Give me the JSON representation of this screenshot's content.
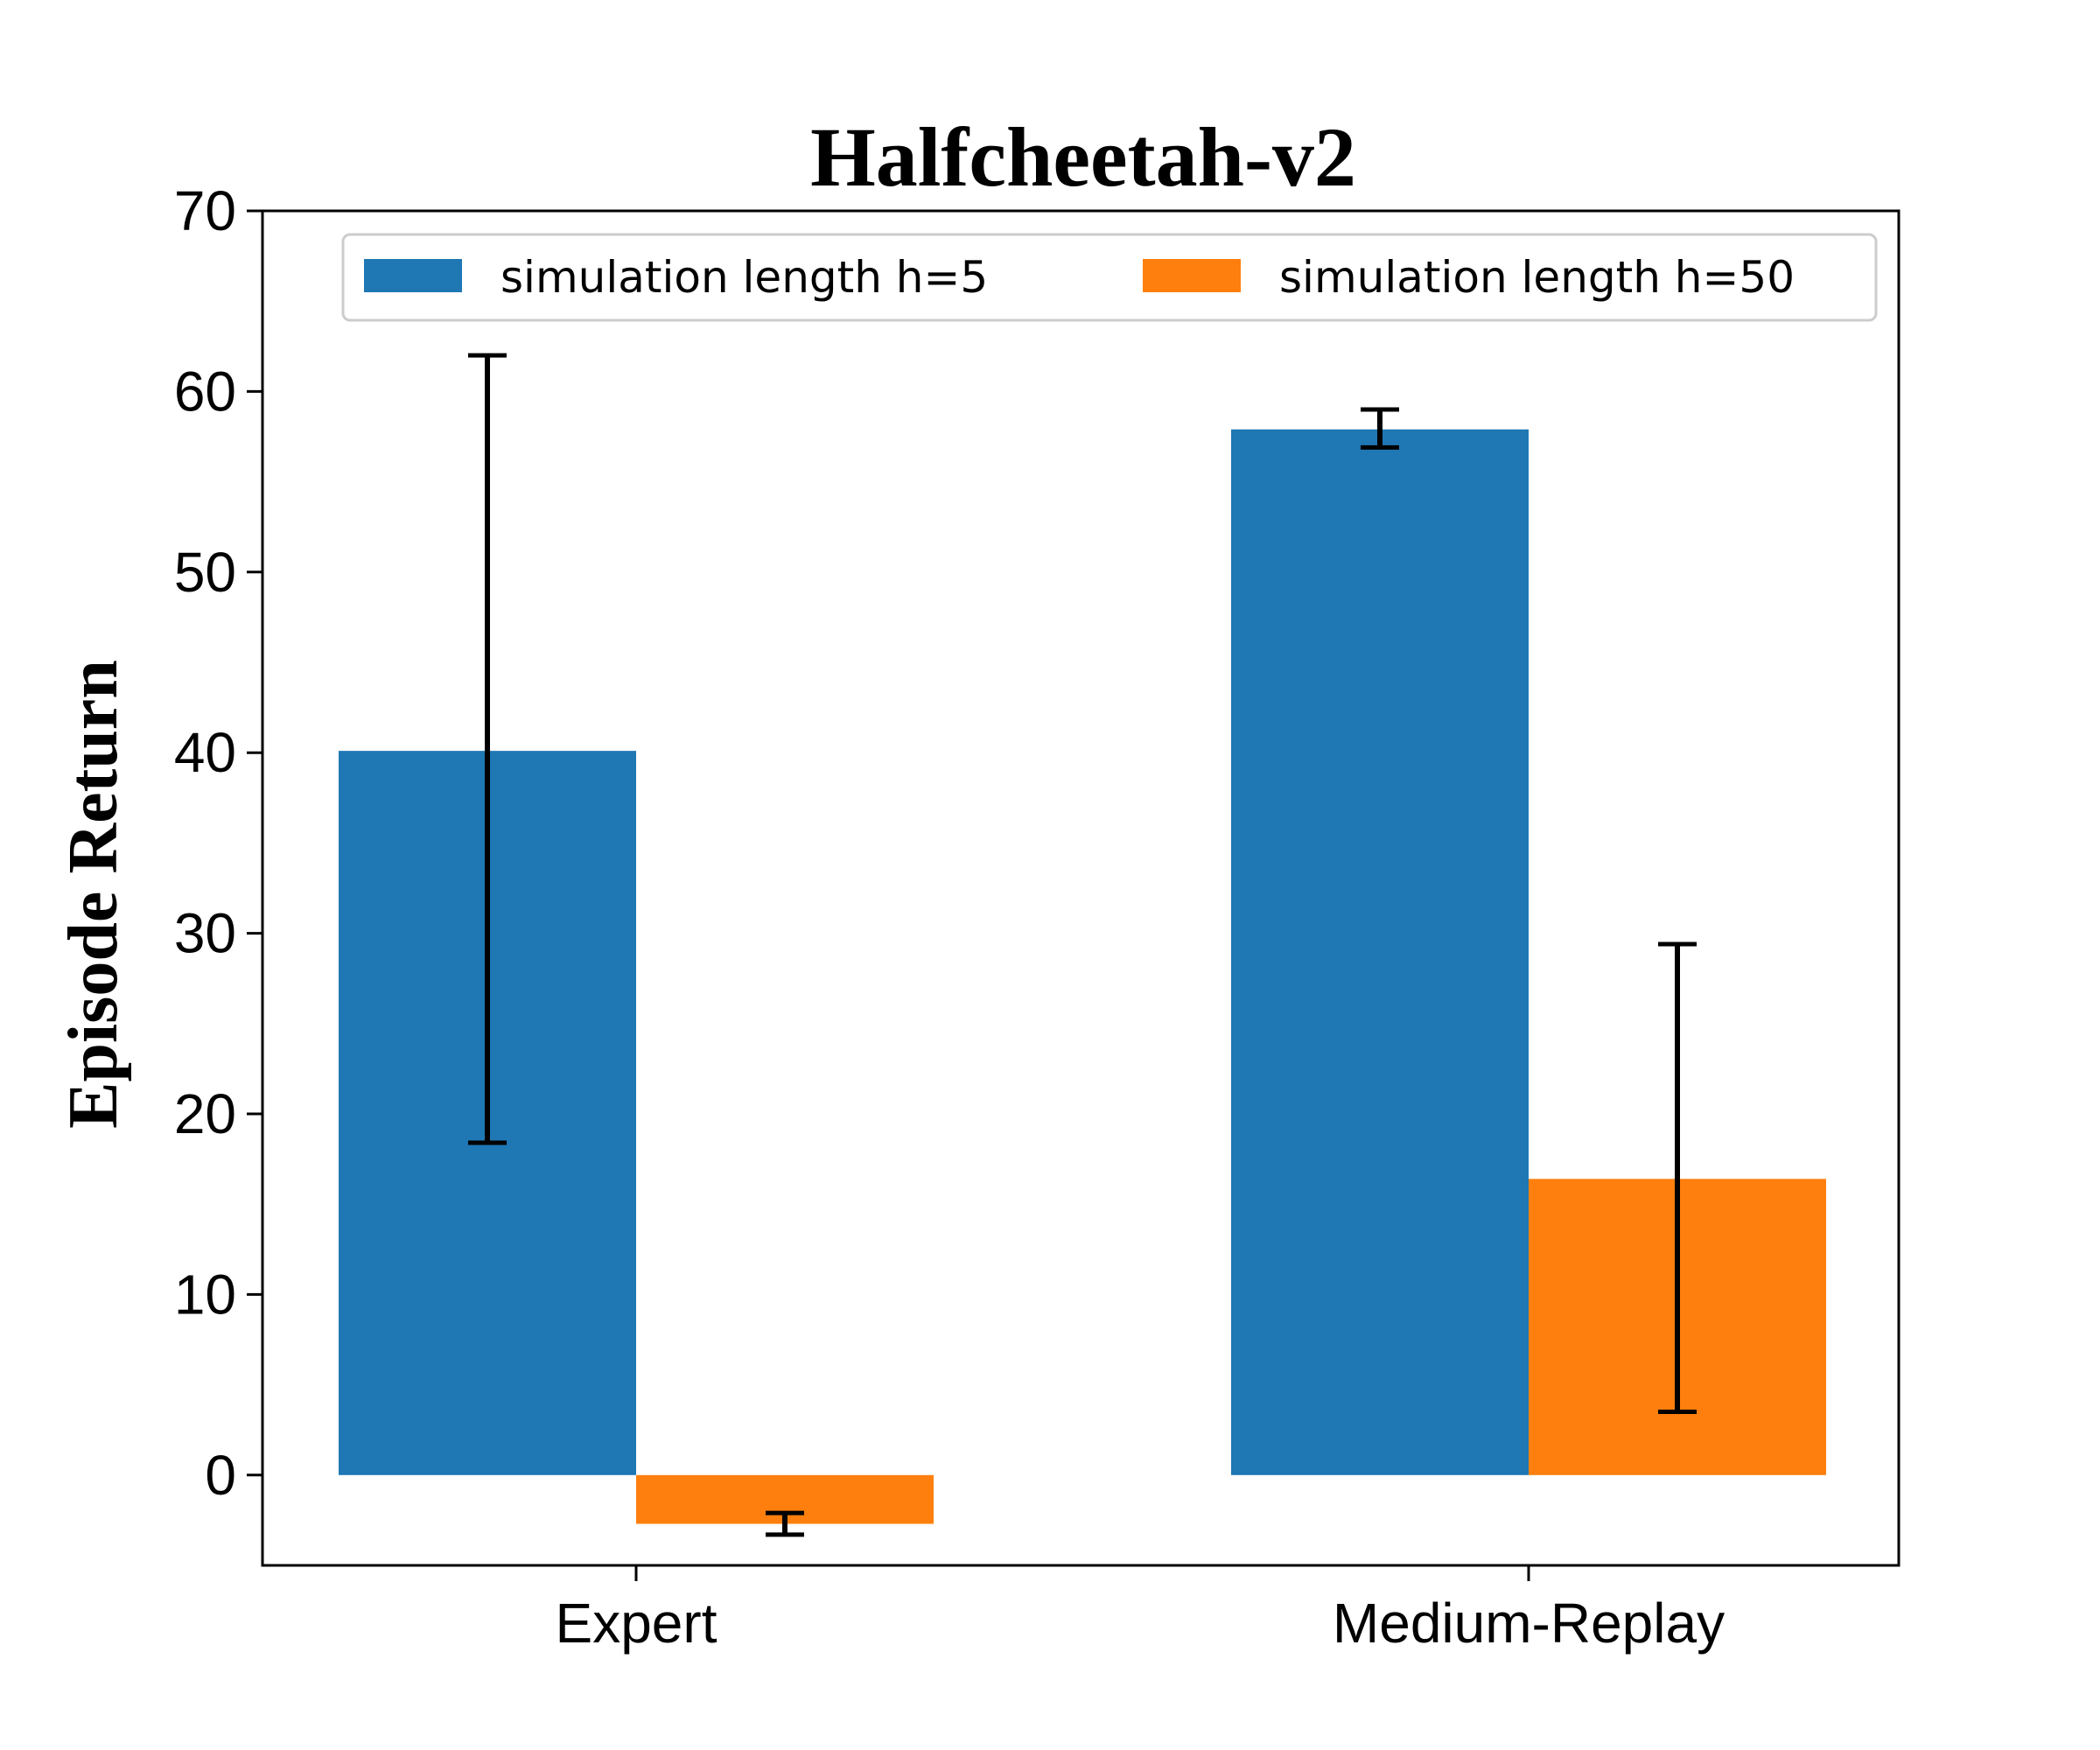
{
  "chart_data": {
    "type": "bar",
    "title": "Halfcheetah-v2",
    "xlabel": "",
    "ylabel": "Episode Return",
    "categories": [
      "Expert",
      "Medium-Replay"
    ],
    "ylim": [
      -5,
      70
    ],
    "yticks": [
      0,
      10,
      20,
      30,
      40,
      50,
      60,
      70
    ],
    "legend_position": "top",
    "series": [
      {
        "name": "simulation length h=5",
        "color": "#1f77b4",
        "values": [
          40.1,
          57.9
        ],
        "error_low": [
          18.4,
          56.9
        ],
        "error_high": [
          62.0,
          59.0
        ]
      },
      {
        "name": "simulation length h=50",
        "color": "#ff7f0e",
        "values": [
          -2.7,
          16.4
        ],
        "error_low": [
          -3.3,
          3.5
        ],
        "error_high": [
          -2.1,
          29.4
        ]
      }
    ]
  }
}
